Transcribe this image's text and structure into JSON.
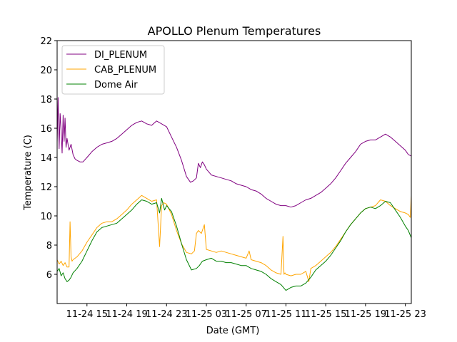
{
  "chart_data": {
    "type": "line",
    "title": "APOLLO Plenum Temperatures",
    "xlabel": "Date (GMT)",
    "ylabel": "Temperature (C)",
    "ylim": [
      4,
      22
    ],
    "xlim": [
      12.0,
      47.6
    ],
    "x_unit": "hours since 11-24 00:00 GMT",
    "yticks": [
      6,
      8,
      10,
      12,
      14,
      16,
      18,
      20,
      22
    ],
    "xticks": [
      {
        "value": 15,
        "label": "11-24 15"
      },
      {
        "value": 19,
        "label": "11-24 19"
      },
      {
        "value": 23,
        "label": "11-24 23"
      },
      {
        "value": 27,
        "label": "11-25 03"
      },
      {
        "value": 31,
        "label": "11-25 07"
      },
      {
        "value": 35,
        "label": "11-25 11"
      },
      {
        "value": 39,
        "label": "11-25 15"
      },
      {
        "value": 43,
        "label": "11-25 19"
      },
      {
        "value": 47,
        "label": "11-25 23"
      }
    ],
    "legend_position": "top-left",
    "series": [
      {
        "name": "DI_PLENUM",
        "color": "#800080",
        "x": [
          12.0,
          12.1,
          12.2,
          12.3,
          12.4,
          12.5,
          12.6,
          12.7,
          12.8,
          12.9,
          13.0,
          13.2,
          13.4,
          13.6,
          13.8,
          14.0,
          14.3,
          14.6,
          15.0,
          15.5,
          16.0,
          16.5,
          17.0,
          17.5,
          18.0,
          18.5,
          19.0,
          19.5,
          20.0,
          20.5,
          21.0,
          21.5,
          22.0,
          22.5,
          23.0,
          23.5,
          24.0,
          24.5,
          25.0,
          25.4,
          25.7,
          26.0,
          26.2,
          26.4,
          26.6,
          26.8,
          27.0,
          27.5,
          28.0,
          28.5,
          29.0,
          29.5,
          30.0,
          30.5,
          31.0,
          31.5,
          32.0,
          32.5,
          33.0,
          33.5,
          34.0,
          34.5,
          35.0,
          35.5,
          36.0,
          36.5,
          37.0,
          37.5,
          38.0,
          38.5,
          39.0,
          39.5,
          40.0,
          40.5,
          41.0,
          41.5,
          42.0,
          42.5,
          43.0,
          43.5,
          44.0,
          44.5,
          45.0,
          45.5,
          46.0,
          46.5,
          47.0,
          47.3,
          47.6
        ],
        "y": [
          15.0,
          18.1,
          14.6,
          17.0,
          15.8,
          14.3,
          16.9,
          15.1,
          16.7,
          14.7,
          15.3,
          14.5,
          14.9,
          14.2,
          13.9,
          13.8,
          13.7,
          13.7,
          14.0,
          14.4,
          14.7,
          14.9,
          15.0,
          15.1,
          15.3,
          15.6,
          15.9,
          16.2,
          16.4,
          16.5,
          16.3,
          16.2,
          16.5,
          16.3,
          16.1,
          15.4,
          14.7,
          13.8,
          12.7,
          12.3,
          12.4,
          12.6,
          13.6,
          13.3,
          13.7,
          13.5,
          13.2,
          12.8,
          12.7,
          12.6,
          12.5,
          12.4,
          12.2,
          12.1,
          12.0,
          11.8,
          11.7,
          11.5,
          11.2,
          11.0,
          10.8,
          10.7,
          10.7,
          10.6,
          10.7,
          10.9,
          11.1,
          11.2,
          11.4,
          11.6,
          11.9,
          12.2,
          12.6,
          13.1,
          13.6,
          14.0,
          14.4,
          14.9,
          15.1,
          15.2,
          15.2,
          15.4,
          15.6,
          15.4,
          15.1,
          14.8,
          14.5,
          14.2,
          14.1
        ]
      },
      {
        "name": "CAB_PLENUM",
        "color": "#ffa500",
        "x": [
          12.0,
          12.2,
          12.4,
          12.6,
          12.8,
          13.0,
          13.2,
          13.3,
          13.4,
          13.5,
          13.6,
          14.0,
          14.5,
          15.0,
          15.5,
          16.0,
          16.5,
          17.0,
          17.5,
          18.0,
          18.5,
          19.0,
          19.5,
          20.0,
          20.5,
          21.0,
          21.5,
          22.0,
          22.3,
          22.5,
          22.7,
          23.0,
          23.5,
          24.0,
          24.5,
          25.0,
          25.5,
          25.8,
          26.0,
          26.2,
          26.5,
          26.8,
          27.0,
          27.5,
          28.0,
          28.5,
          29.0,
          29.5,
          30.0,
          30.5,
          31.0,
          31.3,
          31.5,
          32.0,
          32.5,
          33.0,
          33.5,
          34.0,
          34.5,
          34.7,
          34.8,
          34.9,
          35.0,
          35.5,
          36.0,
          36.5,
          37.0,
          37.3,
          37.5,
          38.0,
          38.5,
          39.0,
          39.5,
          40.0,
          40.5,
          41.0,
          41.5,
          42.0,
          42.5,
          43.0,
          43.5,
          44.0,
          44.5,
          45.0,
          45.5,
          46.0,
          46.5,
          47.0,
          47.3,
          47.5,
          47.6
        ],
        "y": [
          7.0,
          6.7,
          6.9,
          6.6,
          6.8,
          6.5,
          6.5,
          9.6,
          7.2,
          6.9,
          7.0,
          7.2,
          7.6,
          8.2,
          8.7,
          9.2,
          9.5,
          9.6,
          9.6,
          9.8,
          10.1,
          10.4,
          10.8,
          11.1,
          11.4,
          11.2,
          11.0,
          11.1,
          7.9,
          10.7,
          10.9,
          10.8,
          10.1,
          9.0,
          8.1,
          7.5,
          7.4,
          7.6,
          8.8,
          9.0,
          8.8,
          9.4,
          7.7,
          7.6,
          7.5,
          7.6,
          7.5,
          7.4,
          7.3,
          7.2,
          7.1,
          7.6,
          7.0,
          6.9,
          6.8,
          6.6,
          6.3,
          6.1,
          6.0,
          8.6,
          6.0,
          6.1,
          6.0,
          5.9,
          6.0,
          6.0,
          6.2,
          5.5,
          6.4,
          6.6,
          6.9,
          7.2,
          7.5,
          7.9,
          8.4,
          8.9,
          9.4,
          9.8,
          10.2,
          10.5,
          10.6,
          10.7,
          11.1,
          11.0,
          10.7,
          10.5,
          10.3,
          10.2,
          10.1,
          9.9,
          11.4
        ]
      },
      {
        "name": "Dome Air",
        "color": "#008000",
        "x": [
          12.0,
          12.2,
          12.4,
          12.6,
          12.8,
          13.0,
          13.2,
          13.4,
          13.6,
          14.0,
          14.5,
          15.0,
          15.5,
          16.0,
          16.5,
          17.0,
          17.5,
          18.0,
          18.5,
          19.0,
          19.5,
          20.0,
          20.5,
          21.0,
          21.5,
          22.0,
          22.3,
          22.5,
          22.8,
          23.0,
          23.5,
          24.0,
          24.5,
          25.0,
          25.5,
          26.0,
          26.3,
          26.6,
          27.0,
          27.5,
          28.0,
          28.5,
          29.0,
          29.5,
          30.0,
          30.5,
          31.0,
          31.5,
          32.0,
          32.5,
          33.0,
          33.5,
          34.0,
          34.5,
          35.0,
          35.5,
          36.0,
          36.5,
          37.0,
          37.5,
          38.0,
          38.5,
          39.0,
          39.5,
          40.0,
          40.5,
          41.0,
          41.5,
          42.0,
          42.5,
          43.0,
          43.5,
          44.0,
          44.5,
          45.0,
          45.5,
          46.0,
          46.5,
          47.0,
          47.3,
          47.6
        ],
        "y": [
          6.2,
          6.4,
          5.9,
          6.1,
          5.7,
          5.5,
          5.6,
          5.8,
          6.1,
          6.4,
          6.9,
          7.6,
          8.3,
          8.9,
          9.2,
          9.3,
          9.4,
          9.5,
          9.8,
          10.1,
          10.4,
          10.8,
          11.1,
          11.0,
          10.8,
          10.9,
          10.2,
          11.2,
          10.4,
          10.7,
          10.3,
          9.3,
          8.1,
          7.0,
          6.3,
          6.4,
          6.6,
          6.9,
          7.0,
          7.1,
          6.9,
          6.9,
          6.8,
          6.8,
          6.7,
          6.6,
          6.6,
          6.4,
          6.3,
          6.2,
          6.0,
          5.7,
          5.5,
          5.3,
          4.9,
          5.1,
          5.2,
          5.2,
          5.4,
          5.8,
          6.3,
          6.6,
          6.9,
          7.3,
          7.8,
          8.3,
          8.9,
          9.4,
          9.8,
          10.2,
          10.5,
          10.6,
          10.5,
          10.7,
          11.0,
          10.9,
          10.4,
          9.9,
          9.3,
          9.0,
          8.5
        ]
      }
    ]
  }
}
